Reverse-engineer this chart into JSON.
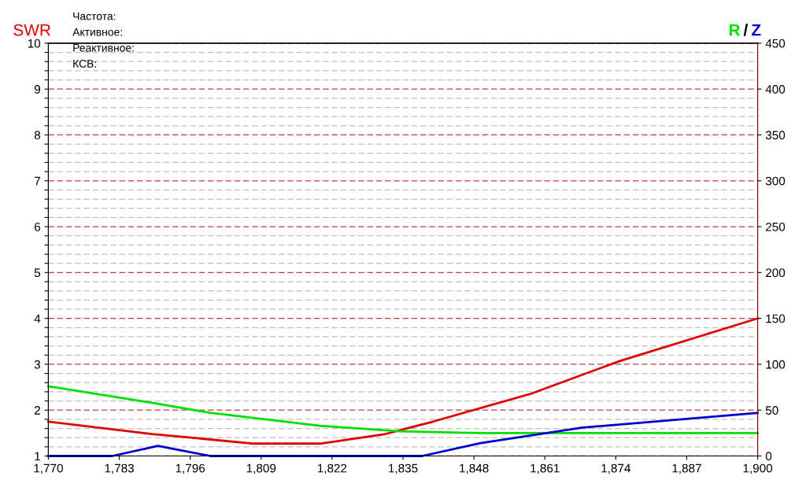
{
  "chart_data": {
    "type": "line",
    "ylabel": "SWR",
    "y2label": "/",
    "annotations": [
      "Частота:",
      "Активное:",
      "Реактивное:",
      "КСВ:"
    ],
    "xlim": [
      1770,
      1900
    ],
    "xticks": [
      {
        "value": 1770,
        "label": "1,770"
      },
      {
        "value": 1783,
        "label": "1,783"
      },
      {
        "value": 1796,
        "label": "1,796"
      },
      {
        "value": 1809,
        "label": "1,809"
      },
      {
        "value": 1822,
        "label": "1,822"
      },
      {
        "value": 1835,
        "label": "1,835"
      },
      {
        "value": 1848,
        "label": "1,848"
      },
      {
        "value": 1861,
        "label": "1,861"
      },
      {
        "value": 1874,
        "label": "1,874"
      },
      {
        "value": 1887,
        "label": "1,887"
      },
      {
        "value": 1900,
        "label": "1,900"
      }
    ],
    "ylim": [
      1,
      10
    ],
    "yticks": [
      1,
      {
        "value": 1.2,
        "label": null
      },
      {
        "value": 1.4,
        "label": null
      },
      {
        "value": 1.6,
        "label": null
      },
      {
        "value": 1.8,
        "label": null
      },
      2,
      {
        "value": 2.2,
        "label": null
      },
      {
        "value": 2.4,
        "label": null
      },
      {
        "value": 2.6,
        "label": null
      },
      {
        "value": 2.8,
        "label": null
      },
      3,
      {
        "value": 3.2,
        "label": null
      },
      {
        "value": 3.4,
        "label": null
      },
      {
        "value": 3.6,
        "label": null
      },
      {
        "value": 3.8,
        "label": null
      },
      4,
      {
        "value": 4.2,
        "label": null
      },
      {
        "value": 4.4,
        "label": null
      },
      {
        "value": 4.6,
        "label": null
      },
      {
        "value": 4.8,
        "label": null
      },
      5,
      {
        "value": 5.2,
        "label": null
      },
      {
        "value": 5.4,
        "label": null
      },
      {
        "value": 5.6,
        "label": null
      },
      {
        "value": 5.8,
        "label": null
      },
      6,
      {
        "value": 6.2,
        "label": null
      },
      {
        "value": 6.4,
        "label": null
      },
      {
        "value": 6.6,
        "label": null
      },
      {
        "value": 6.8,
        "label": null
      },
      7,
      {
        "value": 7.2,
        "label": null
      },
      {
        "value": 7.4,
        "label": null
      },
      {
        "value": 7.6,
        "label": null
      },
      {
        "value": 7.8,
        "label": null
      },
      8,
      {
        "value": 8.2,
        "label": null
      },
      {
        "value": 8.4,
        "label": null
      },
      {
        "value": 8.6,
        "label": null
      },
      {
        "value": 8.8,
        "label": null
      },
      9,
      {
        "value": 9.2,
        "label": null
      },
      {
        "value": 9.4,
        "label": null
      },
      {
        "value": 9.6,
        "label": null
      },
      {
        "value": 9.8,
        "label": null
      },
      10
    ],
    "y2lim": [
      0,
      450
    ],
    "y2ticks": [
      0,
      50,
      100,
      150,
      200,
      250,
      300,
      350,
      400,
      450
    ],
    "grid": "y",
    "line_style": "solid",
    "series": [
      {
        "color": "#e00000",
        "x": [
          1770,
          1789,
          1807.7,
          1819.8,
          1831.8,
          1840.5,
          1858.5,
          1874.7,
          1900
        ],
        "values": [
          1.75,
          1.48,
          1.27,
          1.27,
          1.48,
          1.75,
          2.36,
          3.07,
          4.0
        ]
      },
      {
        "name": "R",
        "color": "#00e000",
        "axis": "y2",
        "x": [
          1770,
          1789,
          1799.7,
          1819.8,
          1834.5,
          1849.2,
          1900
        ],
        "values": [
          76,
          58,
          47,
          33,
          27,
          25,
          25
        ]
      },
      {
        "name": "Z",
        "color": "#0000d0",
        "axis": "y2",
        "x": [
          1770,
          1781.7,
          1790.1,
          1799.7,
          1838.5,
          1849.2,
          1867.9,
          1900
        ],
        "values": [
          0,
          0,
          11,
          0,
          0,
          14,
          31,
          47
        ]
      }
    ]
  }
}
